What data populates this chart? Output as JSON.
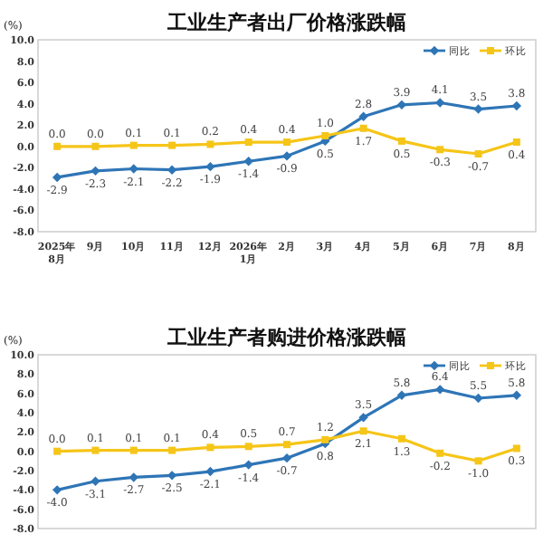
{
  "chart_data": [
    {
      "type": "line",
      "title": "工业生产者出厂价格涨跌幅",
      "ylabel": "(%)",
      "categories": [
        "2025年\n8月",
        "9月",
        "10月",
        "11月",
        "12月",
        "2026年\n1月",
        "2月",
        "3月",
        "4月",
        "5月",
        "6月",
        "7月",
        "8月"
      ],
      "series": [
        {
          "name": "同比",
          "color": "#2e75b6",
          "marker": "diamond",
          "values": [
            -2.9,
            -2.3,
            -2.1,
            -2.2,
            -1.9,
            -1.4,
            -0.9,
            0.5,
            2.8,
            3.9,
            4.1,
            3.5,
            3.8
          ],
          "value_labels": [
            "-2.9",
            "-2.3",
            "-2.1",
            "-2.2",
            "-1.9",
            "-1.4",
            "-0.9",
            "0.5",
            "2.8",
            "3.9",
            "4.1",
            "3.5",
            "3.8"
          ]
        },
        {
          "name": "环比",
          "color": "#f5c518",
          "marker": "square",
          "values": [
            0.0,
            0.0,
            0.1,
            0.1,
            0.2,
            0.4,
            0.4,
            1.0,
            1.7,
            0.5,
            -0.3,
            -0.7,
            0.4
          ],
          "value_labels": [
            "0.0",
            "0.0",
            "0.1",
            "0.1",
            "0.2",
            "0.4",
            "0.4",
            "1.0",
            "1.7",
            "0.5",
            "-0.3",
            "-0.7",
            "0.4"
          ]
        }
      ],
      "ylim": [
        -8,
        10
      ],
      "yticks": [
        {
          "value": 10,
          "label": "10.0"
        },
        {
          "value": 8,
          "label": "8.0"
        },
        {
          "value": 6,
          "label": "6.0"
        },
        {
          "value": 4,
          "label": "4.0"
        },
        {
          "value": 2,
          "label": "2.0"
        },
        {
          "value": 0,
          "label": "0.0"
        },
        {
          "value": -2,
          "label": "-2.0"
        },
        {
          "value": -4,
          "label": "-4.0"
        },
        {
          "value": -6,
          "label": "-6.0"
        },
        {
          "value": -8,
          "label": "-8.0"
        }
      ],
      "legend": "top right",
      "grid": false
    },
    {
      "type": "line",
      "title": "工业生产者购进价格涨跌幅",
      "ylabel": "(%)",
      "categories": [
        null,
        null,
        null,
        null,
        null,
        null,
        null,
        null,
        null,
        null,
        null,
        null,
        null
      ],
      "series": [
        {
          "name": "同比",
          "color": "#2e75b6",
          "marker": "diamond",
          "values": [
            -4.0,
            -3.1,
            -2.7,
            -2.5,
            -2.1,
            -1.4,
            -0.7,
            0.8,
            3.5,
            5.8,
            6.4,
            5.5,
            5.8
          ],
          "value_labels": [
            "-4.0",
            "-3.1",
            "-2.7",
            "-2.5",
            "-2.1",
            "-1.4",
            "-0.7",
            "0.8",
            "3.5",
            "5.8",
            "6.4",
            "5.5",
            "5.8"
          ]
        },
        {
          "name": "环比",
          "color": "#f5c518",
          "marker": "square",
          "values": [
            0.0,
            0.1,
            0.1,
            0.1,
            0.4,
            0.5,
            0.7,
            1.2,
            2.1,
            1.3,
            -0.2,
            -1.0,
            0.3
          ],
          "value_labels": [
            "0.0",
            "0.1",
            "0.1",
            "0.1",
            "0.4",
            "0.5",
            "0.7",
            "1.2",
            "2.1",
            "1.3",
            "-0.2",
            "-1.0",
            "0.3"
          ]
        }
      ],
      "ylim": [
        -8,
        10
      ],
      "yticks": [
        {
          "value": 10,
          "label": "10.0"
        },
        {
          "value": 8,
          "label": "8.0"
        },
        {
          "value": 6,
          "label": "6.0"
        },
        {
          "value": 4,
          "label": "4.0"
        },
        {
          "value": 2,
          "label": "2.0"
        },
        {
          "value": 0,
          "label": "0.0"
        },
        {
          "value": -2,
          "label": "-2.0"
        },
        {
          "value": -4,
          "label": "-4.0"
        },
        {
          "value": -6,
          "label": "-6.0"
        },
        {
          "value": -8,
          "label": "-8.0"
        }
      ],
      "legend": "top right",
      "grid": false
    }
  ]
}
